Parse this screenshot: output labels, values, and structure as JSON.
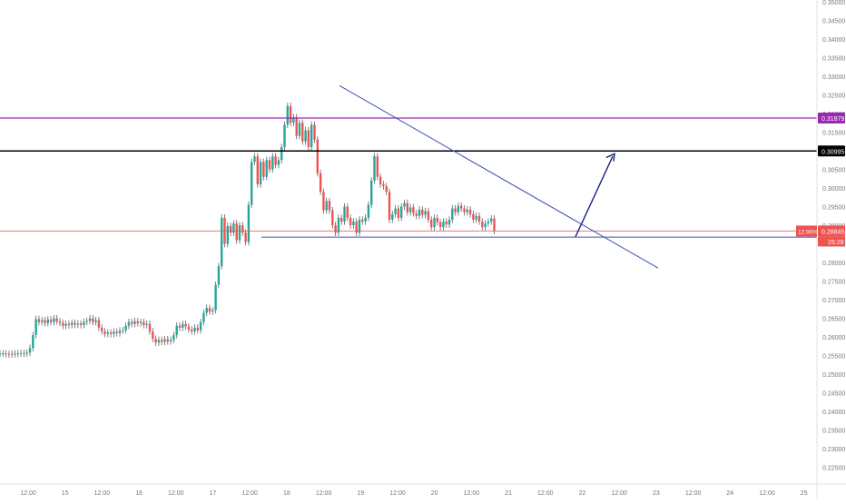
{
  "chart_data": {
    "type": "candlestick",
    "title": "",
    "xlabel": "",
    "ylabel": "",
    "ylim": [
      0.2205,
      0.3505
    ],
    "grid": false,
    "x_ticks": [
      "12:00",
      "15",
      "12:00",
      "16",
      "12:00",
      "17",
      "12:00",
      "18",
      "12:00",
      "19",
      "12:00",
      "20",
      "12:00",
      "21",
      "12:00",
      "22",
      "12:00",
      "23",
      "12:00",
      "24",
      "12:00",
      "25"
    ],
    "y_ticks": [
      "0.22500",
      "0.23000",
      "0.23500",
      "0.24000",
      "0.24500",
      "0.25000",
      "0.25500",
      "0.26000",
      "0.26500",
      "0.27000",
      "0.27500",
      "0.28000",
      "0.28500",
      "0.29000",
      "0.29500",
      "0.30000",
      "0.30500",
      "0.31000",
      "0.31500",
      "0.32000",
      "0.32500",
      "0.33000",
      "0.33500",
      "0.34000",
      "0.34500",
      "0.35000"
    ],
    "series": [
      {
        "close": [
          0.2555,
          0.2556,
          0.2554,
          0.2553,
          0.2555,
          0.2554,
          0.2556,
          0.2557,
          0.2555,
          0.2558,
          0.257,
          0.2605,
          0.2648,
          0.264,
          0.2645,
          0.2637,
          0.2647,
          0.264,
          0.265,
          0.2642,
          0.2638,
          0.263,
          0.2635,
          0.2632,
          0.2638,
          0.2633,
          0.2636,
          0.2632,
          0.264,
          0.2643,
          0.265,
          0.264,
          0.2645,
          0.2625,
          0.2615,
          0.2608,
          0.2612,
          0.2608,
          0.2614,
          0.261,
          0.2617,
          0.2618,
          0.263,
          0.264,
          0.2635,
          0.2642,
          0.2637,
          0.264,
          0.2632,
          0.2635,
          0.2615,
          0.2595,
          0.2585,
          0.2592,
          0.2587,
          0.2594,
          0.2588,
          0.2592,
          0.2605,
          0.263,
          0.2625,
          0.2635,
          0.2628,
          0.262,
          0.2615,
          0.2625,
          0.2618,
          0.264,
          0.2665,
          0.2678,
          0.2668,
          0.2672,
          0.274,
          0.279,
          0.292,
          0.285,
          0.2898,
          0.288,
          0.2905,
          0.286,
          0.29,
          0.288,
          0.2855,
          0.2955,
          0.307,
          0.3085,
          0.301,
          0.307,
          0.303,
          0.3075,
          0.305,
          0.3085,
          0.3062,
          0.3075,
          0.311,
          0.317,
          0.322,
          0.3175,
          0.319,
          0.314,
          0.3175,
          0.3125,
          0.3155,
          0.311,
          0.317,
          0.313,
          0.304,
          0.299,
          0.294,
          0.2965,
          0.294,
          0.29,
          0.288,
          0.292,
          0.291,
          0.295,
          0.292,
          0.29,
          0.291,
          0.288,
          0.2915,
          0.291,
          0.292,
          0.2955,
          0.302,
          0.3085,
          0.303,
          0.301,
          0.3005,
          0.299,
          0.2915,
          0.293,
          0.2945,
          0.292,
          0.295,
          0.296,
          0.2935,
          0.2948,
          0.2932,
          0.2925,
          0.2942,
          0.2928,
          0.2938,
          0.2915,
          0.2895,
          0.292,
          0.2908,
          0.2895,
          0.291,
          0.2902,
          0.2915,
          0.2945,
          0.2935,
          0.2952,
          0.2945,
          0.2935,
          0.2942,
          0.293,
          0.2915,
          0.2925,
          0.291,
          0.2895,
          0.2905,
          0.291,
          0.2918,
          0.2885
        ]
      }
    ],
    "lines": [
      {
        "name": "resistance-level",
        "value": 0.31879,
        "color": "#9C27B0",
        "label": "0.31879"
      },
      {
        "name": "key-level",
        "value": 0.30995,
        "color": "#000000",
        "label": "0.30995"
      },
      {
        "name": "last-price",
        "value": 0.28845,
        "color": "#EF5350",
        "label": "0.28845"
      }
    ],
    "badges": {
      "last_percent": "12.90%",
      "countdown": "25:28"
    },
    "colors": {
      "up": "#26A69A",
      "down": "#EF5350",
      "trendline": "#3F51B5",
      "axis_text": "#777777"
    }
  }
}
